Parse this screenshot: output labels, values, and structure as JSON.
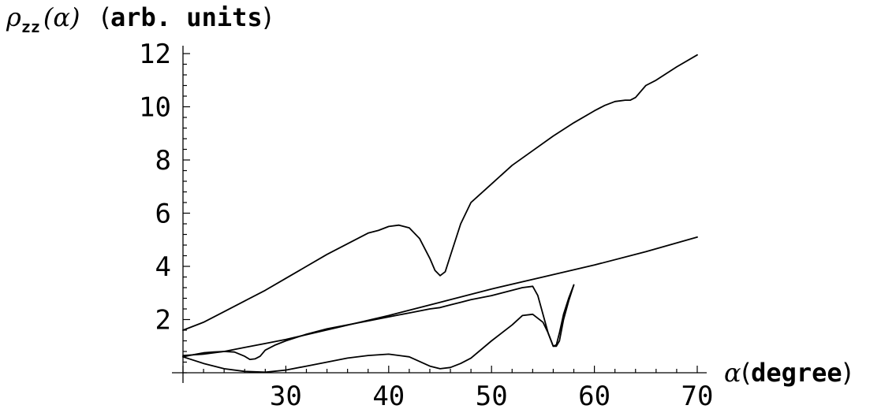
{
  "chart_data": {
    "type": "line",
    "ylabel": {
      "symbol": "ρ",
      "subscript": "zz",
      "arg": "(α)",
      "open": "(",
      "unit": "arb. units",
      "close": ")"
    },
    "xlabel": {
      "symbol": "α",
      "open": "(",
      "unit": "degree",
      "close": ")"
    },
    "xlim": [
      20,
      70
    ],
    "ylim": [
      0,
      12
    ],
    "xticks": [
      30,
      40,
      50,
      60,
      70
    ],
    "yticks": [
      2,
      4,
      6,
      8,
      10,
      12
    ],
    "grid": false,
    "series": [
      {
        "x": [
          20,
          22,
          24,
          26,
          28,
          30,
          32,
          34,
          36,
          38,
          39,
          40,
          41,
          42,
          43,
          44,
          44.5,
          45,
          45.5,
          46,
          47,
          48,
          50,
          52,
          54,
          56,
          58,
          60,
          61,
          62,
          63,
          63.5,
          64,
          65,
          66,
          68,
          70
        ],
        "values": [
          1.6,
          1.9,
          2.3,
          2.7,
          3.1,
          3.55,
          4.0,
          4.45,
          4.85,
          5.25,
          5.35,
          5.5,
          5.55,
          5.45,
          5.05,
          4.3,
          3.85,
          3.65,
          3.8,
          4.4,
          5.6,
          6.4,
          7.1,
          7.8,
          8.35,
          8.9,
          9.4,
          9.85,
          10.05,
          10.2,
          10.25,
          10.25,
          10.35,
          10.8,
          11.0,
          11.5,
          11.95
        ]
      },
      {
        "x": [
          20,
          22,
          24,
          26,
          28,
          30,
          35,
          40,
          45,
          50,
          55,
          60,
          65,
          70
        ],
        "values": [
          0.65,
          0.7,
          0.8,
          0.95,
          1.1,
          1.25,
          1.7,
          2.15,
          2.65,
          3.15,
          3.6,
          4.05,
          4.55,
          5.1
        ]
      },
      {
        "x": [
          20,
          21,
          22,
          23,
          24,
          25,
          26,
          26.5,
          27,
          27.5,
          28,
          29,
          30,
          32,
          34,
          36,
          38,
          40,
          42,
          44,
          45,
          46,
          47,
          48,
          50,
          52,
          53,
          54,
          54.5,
          55,
          55.5,
          56,
          56.3,
          56.6,
          57,
          57.5,
          58
        ],
        "values": [
          0.6,
          0.68,
          0.75,
          0.78,
          0.8,
          0.78,
          0.62,
          0.5,
          0.52,
          0.62,
          0.85,
          1.05,
          1.2,
          1.45,
          1.65,
          1.8,
          1.95,
          2.1,
          2.25,
          2.4,
          2.45,
          2.55,
          2.65,
          2.75,
          2.9,
          3.1,
          3.2,
          3.25,
          2.9,
          2.2,
          1.5,
          1.0,
          1.05,
          1.5,
          2.2,
          2.8,
          3.3
        ]
      },
      {
        "x": [
          20,
          22,
          24,
          26,
          28,
          30,
          32,
          34,
          36,
          38,
          40,
          42,
          44,
          45,
          46,
          47,
          48,
          50,
          52,
          53,
          54,
          55,
          55.5,
          56,
          56.3,
          56.6,
          57,
          57.5,
          58
        ],
        "values": [
          0.6,
          0.35,
          0.15,
          0.05,
          0.02,
          0.1,
          0.25,
          0.4,
          0.55,
          0.65,
          0.7,
          0.6,
          0.25,
          0.15,
          0.2,
          0.35,
          0.55,
          1.2,
          1.8,
          2.15,
          2.2,
          1.9,
          1.5,
          1.0,
          1.0,
          1.2,
          2.0,
          2.7,
          3.3
        ]
      }
    ]
  }
}
